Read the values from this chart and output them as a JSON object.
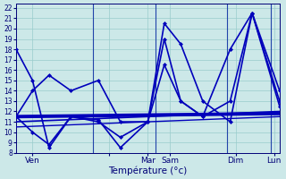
{
  "xlabel": "Température (°c)",
  "xlim": [
    0,
    24
  ],
  "ylim": [
    8,
    22.4
  ],
  "yticks": [
    8,
    9,
    10,
    11,
    12,
    13,
    14,
    15,
    16,
    17,
    18,
    19,
    20,
    21,
    22
  ],
  "xtick_positions": [
    1.5,
    8.5,
    12,
    14,
    20,
    23.5
  ],
  "xtick_labels": [
    "Ven",
    "",
    "Mar",
    "Sam",
    "Dim",
    "Lun"
  ],
  "bg_color": "#cce8e8",
  "grid_color": "#99cccc",
  "line_color": "#0000bb",
  "series": [
    {
      "x": [
        0,
        1.5,
        3,
        5,
        7.5,
        9.5,
        12,
        13.5,
        15,
        17,
        19.5,
        21.5,
        24
      ],
      "y": [
        18,
        15,
        8.5,
        11.5,
        11.2,
        8.5,
        11.0,
        20.5,
        18.5,
        13,
        11.0,
        21.5,
        14
      ],
      "marker": "D",
      "ms": 2.0,
      "lw": 1.2,
      "dashed": false
    },
    {
      "x": [
        0,
        1.5,
        3,
        5,
        7.5,
        9.5,
        12,
        13.5,
        15,
        17,
        19.5,
        21.5,
        24
      ],
      "y": [
        11.5,
        14,
        15.5,
        14,
        15,
        11.0,
        11.0,
        19.0,
        13.0,
        11.5,
        13.0,
        21.5,
        13.0
      ],
      "marker": "D",
      "ms": 2.0,
      "lw": 1.2,
      "dashed": false
    },
    {
      "x": [
        0,
        1.5,
        3,
        5,
        7.5,
        9.5,
        12,
        13.5,
        15,
        17,
        19.5,
        21.5,
        24
      ],
      "y": [
        11.5,
        10.0,
        8.8,
        11.5,
        11.0,
        9.5,
        11.0,
        16.5,
        13.0,
        11.5,
        18.0,
        21.5,
        12.5
      ],
      "marker": "D",
      "ms": 2.0,
      "lw": 1.2,
      "dashed": false
    },
    {
      "x": [
        0,
        24
      ],
      "y": [
        11.5,
        11.8
      ],
      "marker": null,
      "ms": 0,
      "lw": 2.8,
      "dashed": false
    },
    {
      "x": [
        0,
        24
      ],
      "y": [
        11.0,
        12.0
      ],
      "marker": null,
      "ms": 0,
      "lw": 1.2,
      "dashed": false
    },
    {
      "x": [
        0,
        24
      ],
      "y": [
        10.5,
        11.5
      ],
      "marker": null,
      "ms": 0,
      "lw": 1.0,
      "dashed": false
    }
  ],
  "vlines_x": [
    7,
    12.7,
    19.2,
    23.2
  ],
  "vline_color": "#2244aa",
  "ytick_fontsize": 5.5,
  "xtick_fontsize": 6.5,
  "xlabel_fontsize": 7.5
}
